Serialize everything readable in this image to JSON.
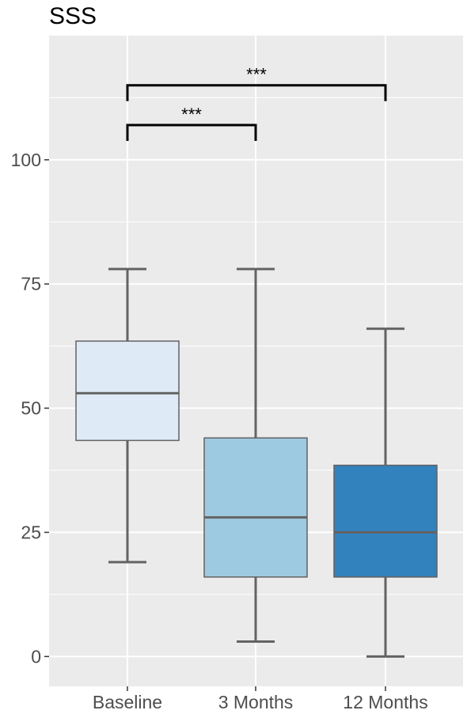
{
  "chart_data": {
    "type": "boxplot",
    "title": "SSS",
    "xlabel": "",
    "ylabel": "",
    "categories": [
      "Baseline",
      "3 Months",
      "12 Months"
    ],
    "boxes": [
      {
        "category": "Baseline",
        "min": 19,
        "q1": 43.5,
        "median": 53,
        "q3": 63.5,
        "max": 78,
        "fill": "#deebf7"
      },
      {
        "category": "3 Months",
        "min": 3,
        "q1": 16,
        "median": 28,
        "q3": 44,
        "max": 78,
        "fill": "#9ecae1"
      },
      {
        "category": "12 Months",
        "min": 0,
        "q1": 16,
        "median": 25,
        "q3": 38.5,
        "max": 66,
        "fill": "#3182bd"
      }
    ],
    "yticks": [
      0,
      25,
      50,
      75,
      100
    ],
    "ytick_labels": [
      "0",
      "25",
      "50",
      "75",
      "100"
    ],
    "ylim": [
      -6,
      125
    ],
    "grid": true,
    "significance": [
      {
        "from": "Baseline",
        "to": "3 Months",
        "label": "***",
        "y": 107
      },
      {
        "from": "Baseline",
        "to": "12 Months",
        "label": "***",
        "y": 115
      }
    ],
    "colors": {
      "panel_background": "#ebebeb",
      "grid_major": "#ffffff",
      "box_stroke": "#636363",
      "bracket": "#000000"
    }
  }
}
